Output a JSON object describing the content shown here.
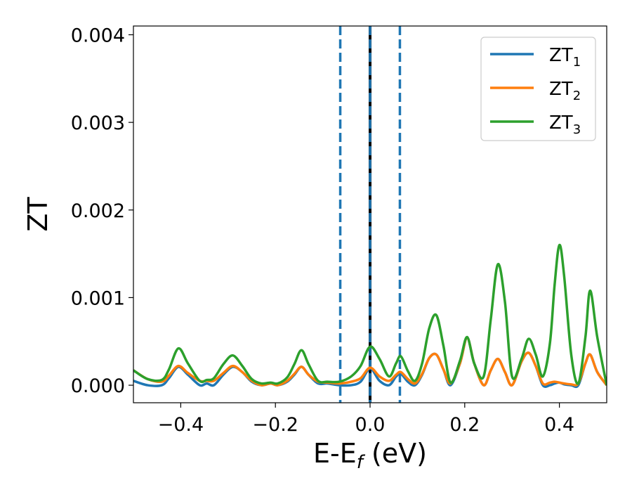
{
  "chart_data": {
    "type": "line",
    "xlabel": "E-E_f (eV)",
    "ylabel": "ZT",
    "xlim": [
      -0.5,
      0.5
    ],
    "ylim": [
      -0.0002,
      0.0041
    ],
    "xticks": [
      -0.4,
      -0.2,
      0.0,
      0.2,
      0.4
    ],
    "xtick_labels": [
      "−0.4",
      "−0.2",
      "0.0",
      "0.2",
      "0.4"
    ],
    "yticks": [
      0.0,
      0.001,
      0.002,
      0.003,
      0.004
    ],
    "ytick_labels": [
      "0.000",
      "0.001",
      "0.002",
      "0.003",
      "0.004"
    ],
    "grid": false,
    "legend_position": "top-right",
    "vlines": [
      {
        "x": -0.063,
        "style": "dashed",
        "color": "#1f77b4"
      },
      {
        "x": 0.0,
        "style": "solid",
        "color": "#000000"
      },
      {
        "x": 0.0,
        "style": "dashed",
        "color": "#1f77b4"
      },
      {
        "x": 0.063,
        "style": "dashed",
        "color": "#1f77b4"
      }
    ],
    "series": [
      {
        "name": "ZT",
        "subscript": "1",
        "color": "#1f77b4",
        "x": [
          -0.5,
          -0.47,
          -0.44,
          -0.425,
          -0.405,
          -0.385,
          -0.36,
          -0.345,
          -0.33,
          -0.31,
          -0.29,
          -0.27,
          -0.25,
          -0.23,
          -0.21,
          -0.195,
          -0.175,
          -0.16,
          -0.145,
          -0.13,
          -0.11,
          -0.09,
          -0.065,
          -0.04,
          -0.02,
          0.0,
          0.02,
          0.04,
          0.055,
          0.065,
          0.08,
          0.095,
          0.11,
          0.125,
          0.14,
          0.155,
          0.17,
          0.19,
          0.205,
          0.22,
          0.24,
          0.255,
          0.27,
          0.285,
          0.3,
          0.32,
          0.335,
          0.35,
          0.365,
          0.38,
          0.39,
          0.4,
          0.41,
          0.425,
          0.44,
          0.455,
          0.465,
          0.48,
          0.5
        ],
        "y": [
          5e-05,
          0.0,
          0.0,
          8e-05,
          0.00021,
          0.00012,
          0.0,
          2e-05,
          0.0,
          0.00012,
          0.00021,
          0.00015,
          4e-05,
          0.0,
          2e-05,
          0.0,
          4e-05,
          0.00012,
          0.00021,
          0.00012,
          2e-05,
          2e-05,
          0.0,
          0.0,
          4e-05,
          0.00019,
          5e-05,
          0.0,
          0.0001,
          0.00013,
          4e-05,
          0.0,
          0.00012,
          0.00031,
          0.00035,
          0.00018,
          0.0,
          0.00025,
          0.00054,
          0.00025,
          0.0,
          0.00017,
          0.0003,
          0.00015,
          0.0,
          0.00027,
          0.00037,
          0.00022,
          0.0,
          0.0,
          2e-05,
          3e-05,
          1e-05,
          0.0,
          0.0,
          0.00025,
          0.00035,
          0.00015,
          0.0
        ]
      },
      {
        "name": "ZT",
        "subscript": "2",
        "color": "#ff7f0e",
        "x": [
          -0.5,
          -0.47,
          -0.44,
          -0.425,
          -0.405,
          -0.385,
          -0.36,
          -0.345,
          -0.33,
          -0.31,
          -0.29,
          -0.27,
          -0.25,
          -0.23,
          -0.21,
          -0.195,
          -0.175,
          -0.16,
          -0.145,
          -0.13,
          -0.11,
          -0.09,
          -0.065,
          -0.04,
          -0.02,
          0.0,
          0.02,
          0.04,
          0.055,
          0.065,
          0.08,
          0.095,
          0.11,
          0.125,
          0.14,
          0.155,
          0.17,
          0.19,
          0.205,
          0.22,
          0.24,
          0.255,
          0.27,
          0.285,
          0.3,
          0.32,
          0.335,
          0.35,
          0.365,
          0.38,
          0.39,
          0.4,
          0.41,
          0.425,
          0.44,
          0.455,
          0.465,
          0.48,
          0.5
        ],
        "y": [
          0.00017,
          7e-05,
          4e-05,
          0.00011,
          0.00022,
          0.00014,
          5e-05,
          5e-05,
          5e-05,
          0.00014,
          0.00022,
          0.00015,
          5e-05,
          0.0,
          2e-05,
          0.0,
          5e-05,
          0.00013,
          0.00021,
          0.00012,
          4e-05,
          3e-05,
          2e-05,
          4e-05,
          8e-05,
          0.0002,
          0.0001,
          5e-05,
          0.00012,
          0.00015,
          7e-05,
          2e-05,
          0.00013,
          0.00031,
          0.00035,
          0.00018,
          2e-05,
          0.00025,
          0.00054,
          0.00025,
          0.0,
          0.00017,
          0.0003,
          0.00015,
          0.0,
          0.00027,
          0.00037,
          0.00022,
          2e-05,
          3e-05,
          4e-05,
          3e-05,
          2e-05,
          1e-05,
          2e-05,
          0.00025,
          0.00035,
          0.00015,
          0.0
        ]
      },
      {
        "name": "ZT",
        "subscript": "3",
        "color": "#2ca02c",
        "x": [
          -0.5,
          -0.47,
          -0.44,
          -0.425,
          -0.405,
          -0.385,
          -0.36,
          -0.345,
          -0.33,
          -0.31,
          -0.29,
          -0.27,
          -0.25,
          -0.23,
          -0.21,
          -0.195,
          -0.175,
          -0.16,
          -0.145,
          -0.13,
          -0.11,
          -0.09,
          -0.065,
          -0.04,
          -0.02,
          0.0,
          0.02,
          0.04,
          0.055,
          0.065,
          0.08,
          0.095,
          0.11,
          0.125,
          0.14,
          0.155,
          0.17,
          0.19,
          0.205,
          0.22,
          0.24,
          0.255,
          0.27,
          0.285,
          0.3,
          0.32,
          0.335,
          0.35,
          0.365,
          0.38,
          0.39,
          0.4,
          0.41,
          0.425,
          0.44,
          0.455,
          0.465,
          0.48,
          0.5
        ],
        "y": [
          0.00017,
          7e-05,
          6e-05,
          0.00018,
          0.00042,
          0.00025,
          5e-05,
          6e-05,
          8e-05,
          0.00024,
          0.00034,
          0.00022,
          7e-05,
          2e-05,
          3e-05,
          2e-05,
          9e-05,
          0.00024,
          0.0004,
          0.00024,
          5e-05,
          4e-05,
          4e-05,
          0.0001,
          0.00022,
          0.00044,
          0.0003,
          0.0001,
          0.00025,
          0.00033,
          0.00016,
          5e-05,
          0.00025,
          0.00065,
          0.0008,
          0.00045,
          3e-05,
          0.00028,
          0.00055,
          0.00025,
          0.0001,
          0.00075,
          0.00138,
          0.00095,
          0.0001,
          0.0003,
          0.00053,
          0.00035,
          0.0001,
          0.00048,
          0.00115,
          0.0016,
          0.00125,
          0.00035,
          2e-05,
          0.00055,
          0.00108,
          0.00055,
          0.0
        ]
      }
    ]
  }
}
